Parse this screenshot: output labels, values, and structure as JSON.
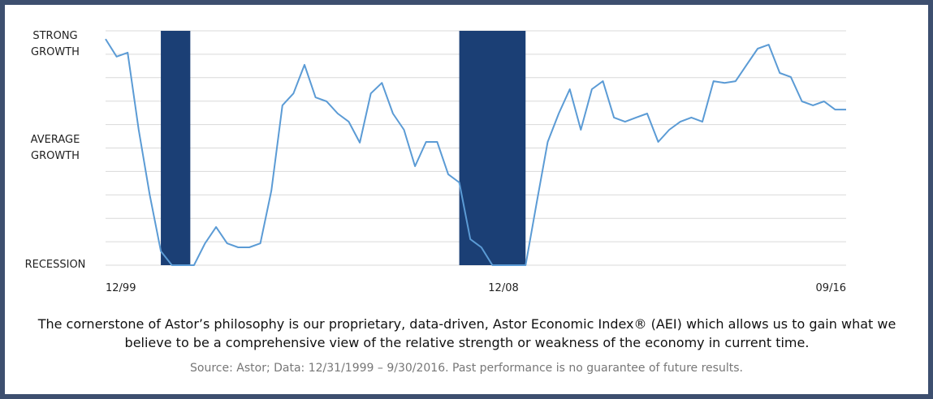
{
  "chart_data": {
    "type": "line",
    "color": "#5b9bd5",
    "recession_color": "#1b3f75",
    "recessions": [
      {
        "start": "03/01",
        "end": "11/01"
      },
      {
        "start": "12/07",
        "end": "06/09"
      }
    ],
    "x": [
      "12/99",
      "03/00",
      "06/00",
      "09/00",
      "12/00",
      "03/01",
      "06/01",
      "09/01",
      "12/01",
      "03/02",
      "06/02",
      "09/02",
      "12/02",
      "03/03",
      "06/03",
      "09/03",
      "12/03",
      "03/04",
      "06/04",
      "09/04",
      "12/04",
      "03/05",
      "06/05",
      "09/05",
      "12/05",
      "03/06",
      "06/06",
      "09/06",
      "12/06",
      "03/07",
      "06/07",
      "09/07",
      "12/07",
      "03/08",
      "06/08",
      "09/08",
      "12/08",
      "03/09",
      "06/09",
      "09/09",
      "12/09",
      "03/10",
      "06/10",
      "09/10",
      "12/10",
      "03/11",
      "06/11",
      "09/11",
      "12/11",
      "03/12",
      "06/12",
      "09/12",
      "12/12",
      "03/13",
      "06/13",
      "09/13",
      "12/13",
      "03/14",
      "06/14",
      "09/14",
      "12/14",
      "03/15",
      "06/15",
      "09/15",
      "12/15",
      "03/16",
      "06/16",
      "09/16"
    ],
    "values": [
      9.65,
      8.9,
      9.07,
      5.78,
      3.0,
      0.6,
      0,
      0,
      0,
      0.93,
      1.63,
      0.93,
      0.76,
      0.76,
      0.93,
      3.18,
      6.82,
      7.33,
      8.55,
      7.16,
      6.99,
      6.47,
      6.12,
      5.23,
      7.33,
      7.78,
      6.47,
      5.78,
      4.22,
      5.26,
      5.26,
      3.88,
      3.53,
      1.11,
      0.76,
      0,
      0,
      0,
      0,
      2.66,
      5.26,
      6.47,
      7.51,
      5.78,
      7.51,
      7.85,
      6.3,
      6.12,
      6.3,
      6.47,
      5.26,
      5.78,
      6.12,
      6.3,
      6.12,
      7.85,
      7.78,
      7.85,
      8.55,
      9.24,
      9.41,
      8.2,
      8.03,
      6.99,
      6.82,
      6.99,
      6.64,
      6.64
    ],
    "ylim": [
      0,
      10
    ],
    "grid_lines": [
      0,
      1,
      2,
      3,
      4,
      5,
      6,
      7,
      8,
      9,
      10
    ],
    "yticks": [
      {
        "value": 9.4,
        "label": "STRONG GROWTH"
      },
      {
        "value": 5,
        "label": "AVERAGE GROWTH"
      },
      {
        "value": 0,
        "label": "RECESSION"
      }
    ],
    "xticks": [
      "12/99",
      "12/08",
      "09/16"
    ],
    "caption": "The cornerstone of Astor’s philosophy is our proprietary, data-driven,  Astor Economic Index® (AEI) which allows us to gain what we believe to be a comprehensive view of the relative strength or weakness of the economy in current time.",
    "source": "Source:  Astor; Data:  12/31/1999 – 9/30/2016. Past performance is no guarantee of future results."
  }
}
